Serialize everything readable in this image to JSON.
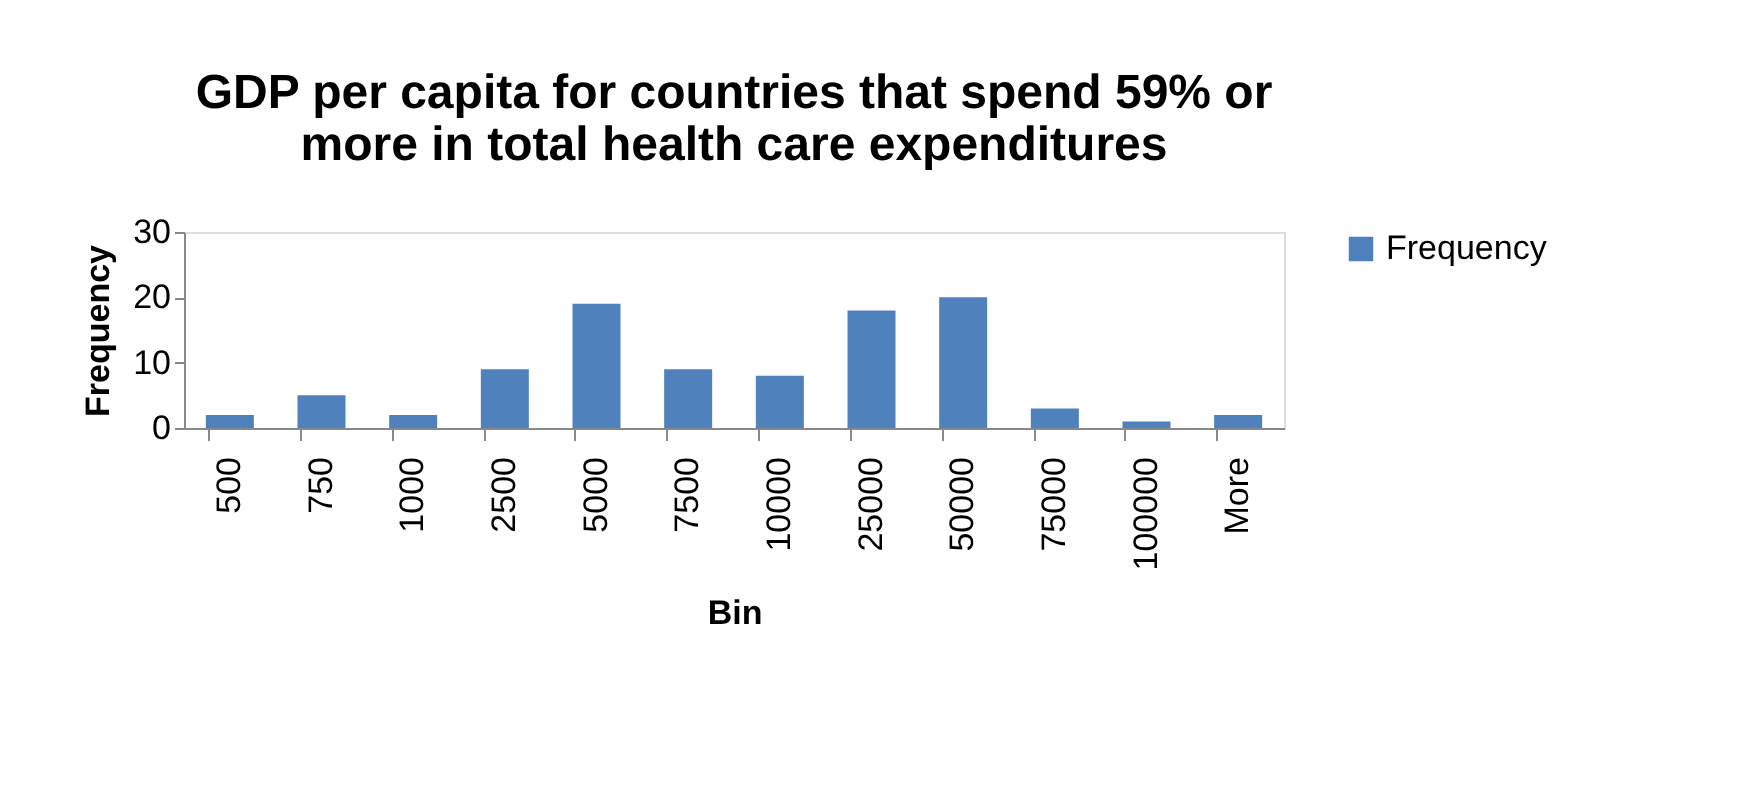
{
  "chart_data": {
    "type": "bar",
    "title": [
      "GDP per capita for countries that spend 59% or",
      "more in total health care expenditures"
    ],
    "xlabel": "Bin",
    "ylabel": "Frequency",
    "categories": [
      "500",
      "750",
      "1000",
      "2500",
      "5000",
      "7500",
      "10000",
      "25000",
      "50000",
      "75000",
      "100000",
      "More"
    ],
    "series": [
      {
        "name": "Frequency",
        "color": "#4f81bd",
        "values": [
          2,
          5,
          2,
          9,
          19,
          9,
          8,
          18,
          20,
          3,
          1,
          2
        ]
      }
    ],
    "ylim": [
      0,
      30
    ],
    "yticks": [
      0,
      10,
      20,
      30
    ],
    "grid": false,
    "legend": "right"
  }
}
